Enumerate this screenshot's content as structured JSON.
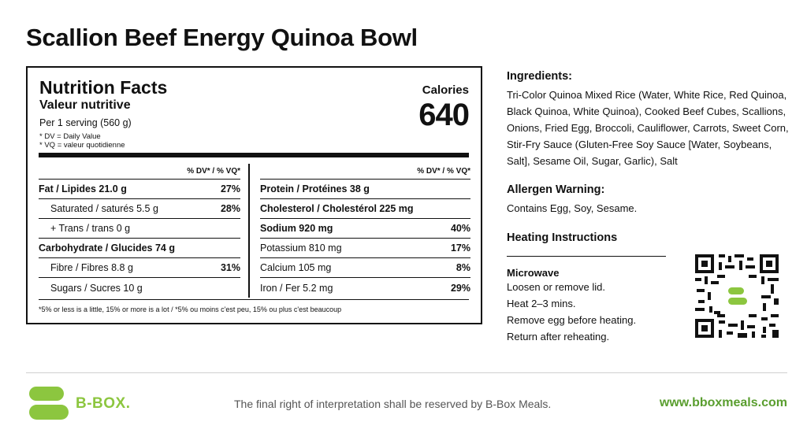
{
  "title": "Scallion Beef Energy Quinoa Bowl",
  "nutrition": {
    "title": "Nutrition Facts",
    "title_fr": "Valeur nutritive",
    "serving": "Per 1 serving (560 g)",
    "note_dv": "* DV = Daily Value",
    "note_vq": "* VQ = valeur quotidienne",
    "calories_label": "Calories",
    "calories_value": "640",
    "dv_header": "% DV* / % VQ*",
    "left_rows": [
      {
        "label": "Fat / Lipides 21.0 g",
        "pct": "27%"
      },
      {
        "label": "Saturated / saturés 5.5 g",
        "pct": "28%"
      },
      {
        "label": "+ Trans / trans 0 g",
        "pct": ""
      },
      {
        "label": "Carbohydrate / Glucides 74 g",
        "pct": ""
      },
      {
        "label": "Fibre / Fibres 8.8 g",
        "pct": "31%"
      },
      {
        "label": "Sugars / Sucres 10 g",
        "pct": ""
      }
    ],
    "right_rows": [
      {
        "label": "Protein / Protéines 38 g",
        "pct": ""
      },
      {
        "label": "Cholesterol / Cholestérol 225 mg",
        "pct": ""
      },
      {
        "label": "Sodium 920 mg",
        "pct": "40%"
      },
      {
        "label": "Potassium 810 mg",
        "pct": "17%"
      },
      {
        "label": "Calcium 105 mg",
        "pct": "8%"
      },
      {
        "label": "Iron / Fer 5.2 mg",
        "pct": "29%"
      }
    ],
    "footnote": "*5% or less is a little, 15% or more is a lot / *5% ou moins c'est peu, 15% ou plus c'est beaucoup"
  },
  "ingredients": {
    "heading": "Ingredients:",
    "text": "Tri-Color Quinoa Mixed Rice (Water, White Rice, Red Quinoa, Black Quinoa, White Quinoa), Cooked Beef Cubes, Scallions, Onions, Fried Egg, Broccoli, Cauliflower, Carrots, Sweet Corn, Stir-Fry Sauce (Gluten-Free Soy Sauce [Water, Soybeans, Salt], Sesame Oil, Sugar, Garlic), Salt"
  },
  "allergen": {
    "heading": "Allergen Warning:",
    "text": "Contains Egg, Soy, Sesame."
  },
  "heating": {
    "heading": "Heating Instructions",
    "method": "Microwave",
    "steps": [
      "Loosen or remove lid.",
      "Heat 2–3 mins.",
      "Remove egg before heating.",
      "Return after reheating."
    ]
  },
  "qr_icon": "qr-code-icon",
  "footer": {
    "logo_text": "B-BOX.",
    "disclaimer": "The final right of interpretation shall be reserved by B-Box Meals.",
    "website": "www.bboxmeals.com"
  },
  "colors": {
    "brand_green": "#8cc63f",
    "website_green": "#5a9e2f"
  }
}
